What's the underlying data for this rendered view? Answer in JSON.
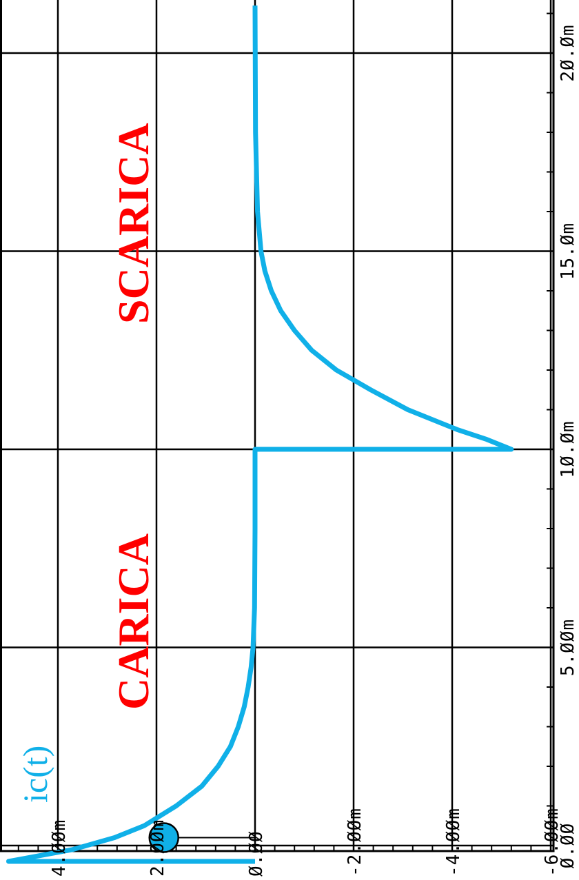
{
  "chart_data": {
    "type": "line",
    "orientation": "rotated 90° counter-clockwise (time axis runs bottom-to-top along the right edge)",
    "title": "",
    "xlabel": "",
    "ylabel": "",
    "xlim": [
      -0.5,
      21.2
    ],
    "ylim": [
      -6.0,
      5.0
    ],
    "x_unit": "ms",
    "grid": true,
    "x_ticks": [
      0,
      5,
      10,
      15,
      20
    ],
    "x_tick_labels": [
      "Ø.ØØ",
      "5.ØØm",
      "1Ø.Øm",
      "15.Øm",
      "2Ø.Øm"
    ],
    "y_ticks": [
      4,
      2,
      0,
      -2,
      -4,
      -6
    ],
    "y_tick_labels": [
      "4.ØØm",
      "2.ØØm",
      "Ø.ØØ",
      "-2.ØØm",
      "-4.ØØm",
      "-6.ØØm"
    ],
    "series": [
      {
        "name": "ic(t)",
        "color": "#10b0e8",
        "points": [
          [
            -0.4,
            0.0
          ],
          [
            -0.4,
            5.0
          ],
          [
            -0.1,
            3.7
          ],
          [
            0.2,
            2.85
          ],
          [
            0.5,
            2.25
          ],
          [
            1.0,
            1.6
          ],
          [
            1.5,
            1.08
          ],
          [
            2.0,
            0.75
          ],
          [
            2.5,
            0.5
          ],
          [
            3.0,
            0.34
          ],
          [
            3.5,
            0.22
          ],
          [
            4.0,
            0.14
          ],
          [
            4.5,
            0.08
          ],
          [
            5.0,
            0.04
          ],
          [
            6.0,
            0.01
          ],
          [
            8.0,
            0.0
          ],
          [
            10.0,
            0.0
          ],
          [
            10.0,
            -5.2
          ],
          [
            10.25,
            -4.7
          ],
          [
            10.5,
            -4.1
          ],
          [
            11.0,
            -3.1
          ],
          [
            11.5,
            -2.35
          ],
          [
            12.0,
            -1.65
          ],
          [
            12.5,
            -1.15
          ],
          [
            13.0,
            -0.8
          ],
          [
            13.5,
            -0.52
          ],
          [
            14.0,
            -0.33
          ],
          [
            14.5,
            -0.2
          ],
          [
            15.0,
            -0.12
          ],
          [
            16.0,
            -0.05
          ],
          [
            18.0,
            -0.01
          ],
          [
            21.2,
            0.0
          ]
        ]
      }
    ],
    "marker": {
      "x": 0.2,
      "y": 1.85,
      "color": "#10b0e8"
    },
    "annotations": [
      {
        "text": "CARICA",
        "color": "#ff0000"
      },
      {
        "text": "SCARICA",
        "color": "#ff0000"
      },
      {
        "text": "ic(t)",
        "color": "#10b0e8"
      }
    ]
  }
}
